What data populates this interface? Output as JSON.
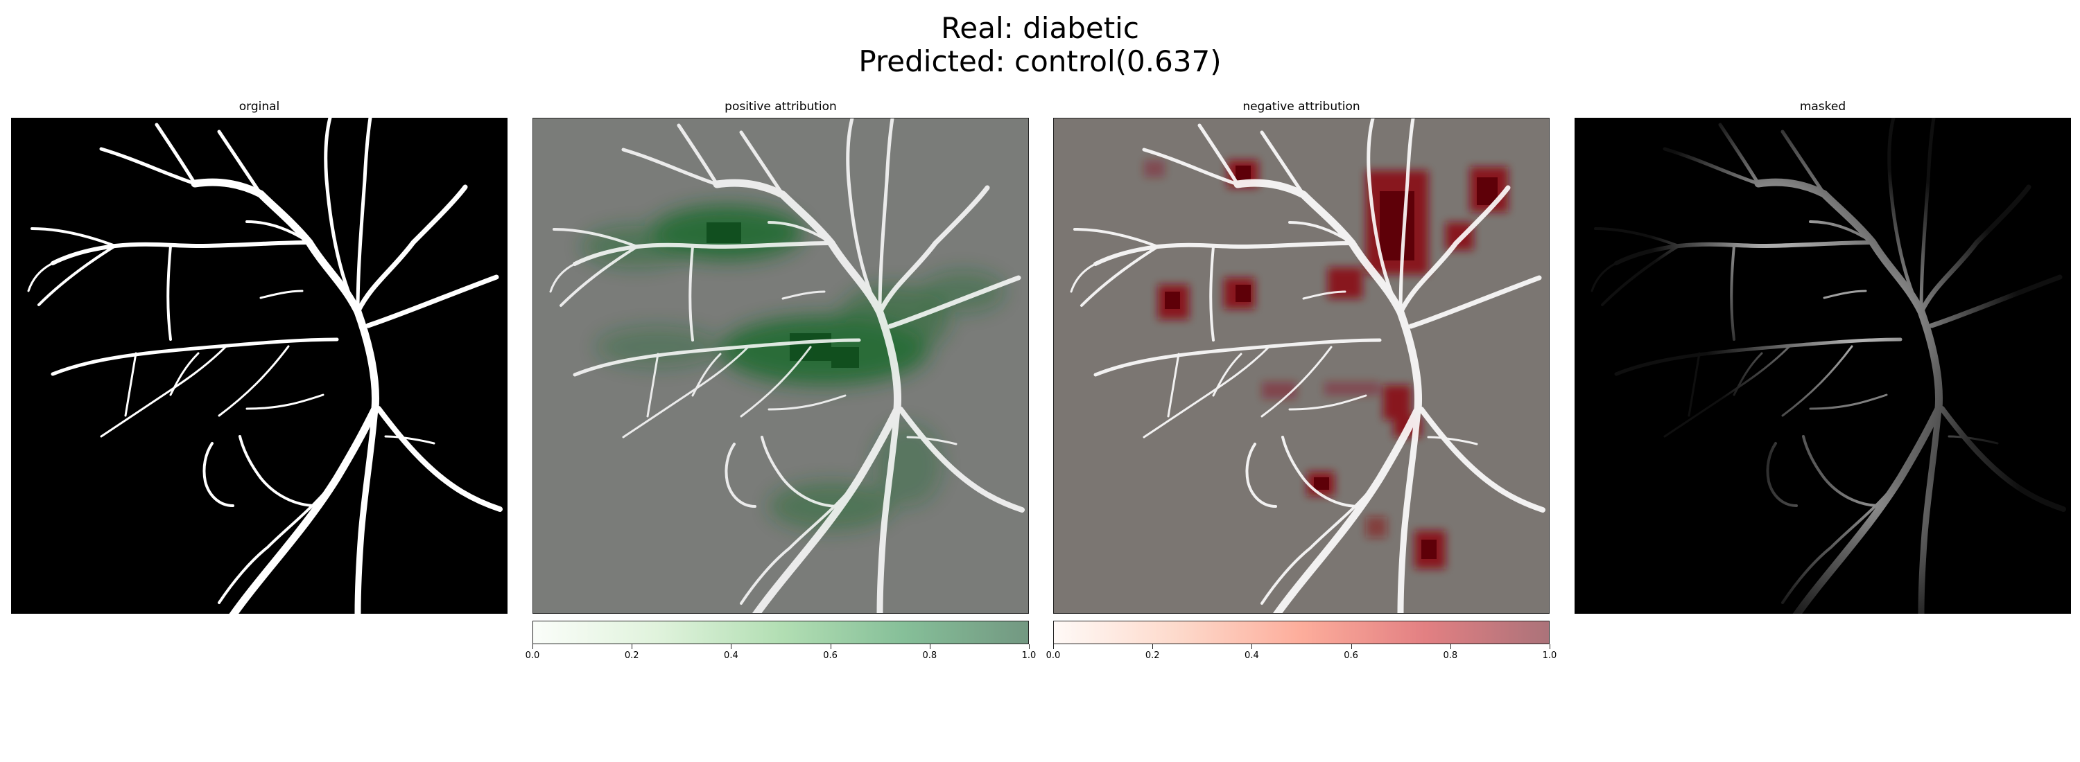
{
  "title": {
    "line1": "Real: diabetic",
    "line2": "Predicted: control(0.637)"
  },
  "panels": [
    {
      "title": "orginal"
    },
    {
      "title": "positive attribution"
    },
    {
      "title": "negative attribution"
    },
    {
      "title": "masked"
    }
  ],
  "colorbars": {
    "positive": {
      "colormap": "Greens",
      "ticks": [
        "0.0",
        "0.2",
        "0.4",
        "0.6",
        "0.8",
        "1.0"
      ]
    },
    "negative": {
      "colormap": "Reds",
      "ticks": [
        "0.0",
        "0.2",
        "0.4",
        "0.6",
        "0.8",
        "1.0"
      ]
    }
  },
  "colors": {
    "background": "#ffffff",
    "original_bg": "#000000",
    "vessel": "#ffffff",
    "positive_bg": "#7a7c79",
    "negative_bg": "#7b7672",
    "positive_hot": "#0d5a22",
    "negative_hot": "#6b0008"
  }
}
